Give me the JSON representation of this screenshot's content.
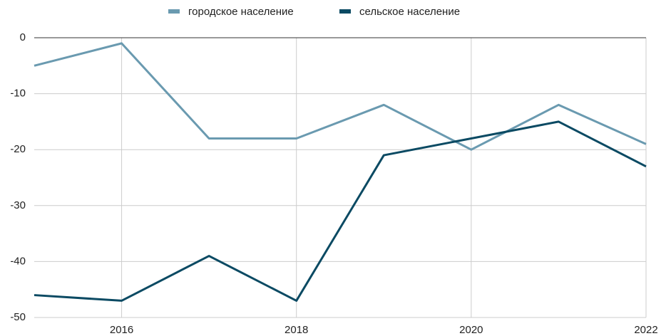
{
  "chart_data": {
    "type": "line",
    "x": [
      2015,
      2016,
      2017,
      2018,
      2019,
      2020,
      2021,
      2022
    ],
    "series": [
      {
        "name": "городское население",
        "color": "#6a9ab0",
        "values": [
          -5,
          -1,
          -18,
          -18,
          -12,
          -20,
          -12,
          -19
        ]
      },
      {
        "name": "сельское население",
        "color": "#0b4a63",
        "values": [
          -46,
          -47,
          -39,
          -47,
          -21,
          -18,
          -15,
          -23
        ]
      }
    ],
    "xlim": [
      2015,
      2022
    ],
    "xticks": [
      2016,
      2018,
      2020,
      2022
    ],
    "ylim": [
      -50,
      0
    ],
    "yticks": [
      0,
      -10,
      -20,
      -30,
      -40,
      -50
    ],
    "grid": true,
    "legend": "top"
  }
}
